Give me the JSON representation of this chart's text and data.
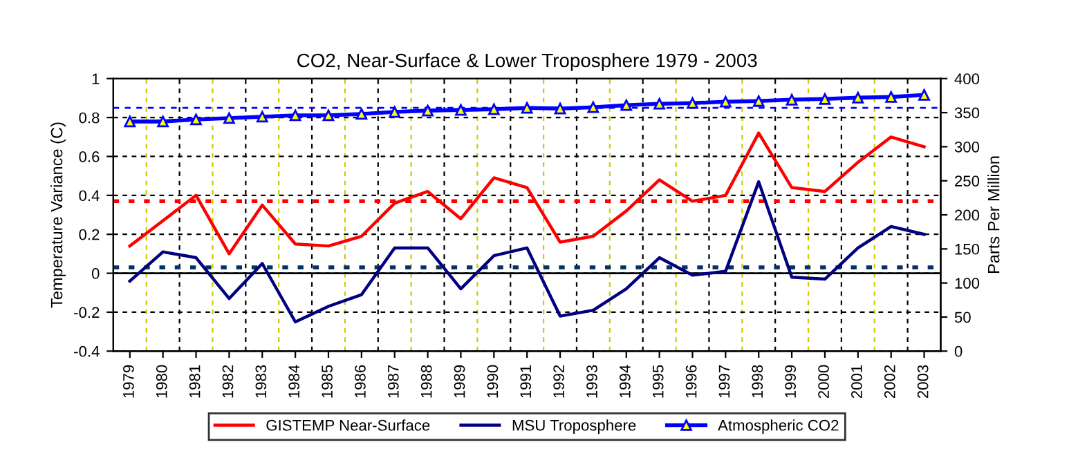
{
  "chart_data": {
    "type": "line",
    "title": "CO2, Near-Surface & Lower Troposphere 1979 - 2003",
    "ylabel": "Temperature Variance (C)",
    "y2label": "Parts Per Million",
    "categories": [
      "1979",
      "1980",
      "1981",
      "1982",
      "1983",
      "1984",
      "1985",
      "1986",
      "1987",
      "1988",
      "1989",
      "1990",
      "1991",
      "1992",
      "1993",
      "1994",
      "1995",
      "1996",
      "1997",
      "1998",
      "1999",
      "2000",
      "2001",
      "2002",
      "2003"
    ],
    "series": [
      {
        "name": "GISTEMP Near-Surface",
        "color": "#ff0000",
        "values": [
          0.14,
          0.27,
          0.4,
          0.1,
          0.35,
          0.15,
          0.14,
          0.19,
          0.36,
          0.42,
          0.28,
          0.49,
          0.44,
          0.16,
          0.19,
          0.32,
          0.48,
          0.37,
          0.4,
          0.72,
          0.44,
          0.42,
          0.57,
          0.7,
          0.65
        ]
      },
      {
        "name": "MSU Troposphere",
        "color": "#000080",
        "values": [
          -0.04,
          0.11,
          0.08,
          -0.13,
          0.05,
          -0.25,
          -0.17,
          -0.11,
          0.13,
          0.13,
          -0.08,
          0.09,
          0.13,
          -0.22,
          -0.19,
          -0.08,
          0.08,
          -0.01,
          0.01,
          0.47,
          -0.02,
          -0.03,
          0.13,
          0.24,
          0.2
        ]
      },
      {
        "name": "Atmospheric CO2",
        "color": "#0000ff",
        "axis": "y2",
        "marker": "triangle",
        "values": [
          337,
          337,
          340,
          342,
          344,
          346,
          346,
          348,
          351,
          353,
          354,
          355,
          357,
          356,
          358,
          361,
          363,
          364,
          366,
          367,
          369,
          370,
          372,
          373,
          376
        ]
      }
    ],
    "ylim": [
      -0.4,
      1
    ],
    "yticks": [
      -0.4,
      -0.2,
      0,
      0.2,
      0.4,
      0.6,
      0.8,
      1
    ],
    "y2lim": [
      0,
      400
    ],
    "y2ticks": [
      0,
      50,
      100,
      150,
      200,
      250,
      300,
      350,
      400
    ],
    "ref_lines": [
      {
        "axis": "y",
        "value": 0,
        "color": "#000000",
        "line_style": "solid"
      },
      {
        "axis": "y",
        "value": 0.37,
        "color": "#ff0000",
        "line_style": "dotted"
      },
      {
        "axis": "y",
        "value": 0.03,
        "color": "#003366",
        "line_style": "dotted"
      },
      {
        "axis": "y2",
        "value": 357,
        "color": "#0000ff",
        "line_style": "dashed"
      }
    ],
    "grid": true,
    "legend": "bottom"
  }
}
